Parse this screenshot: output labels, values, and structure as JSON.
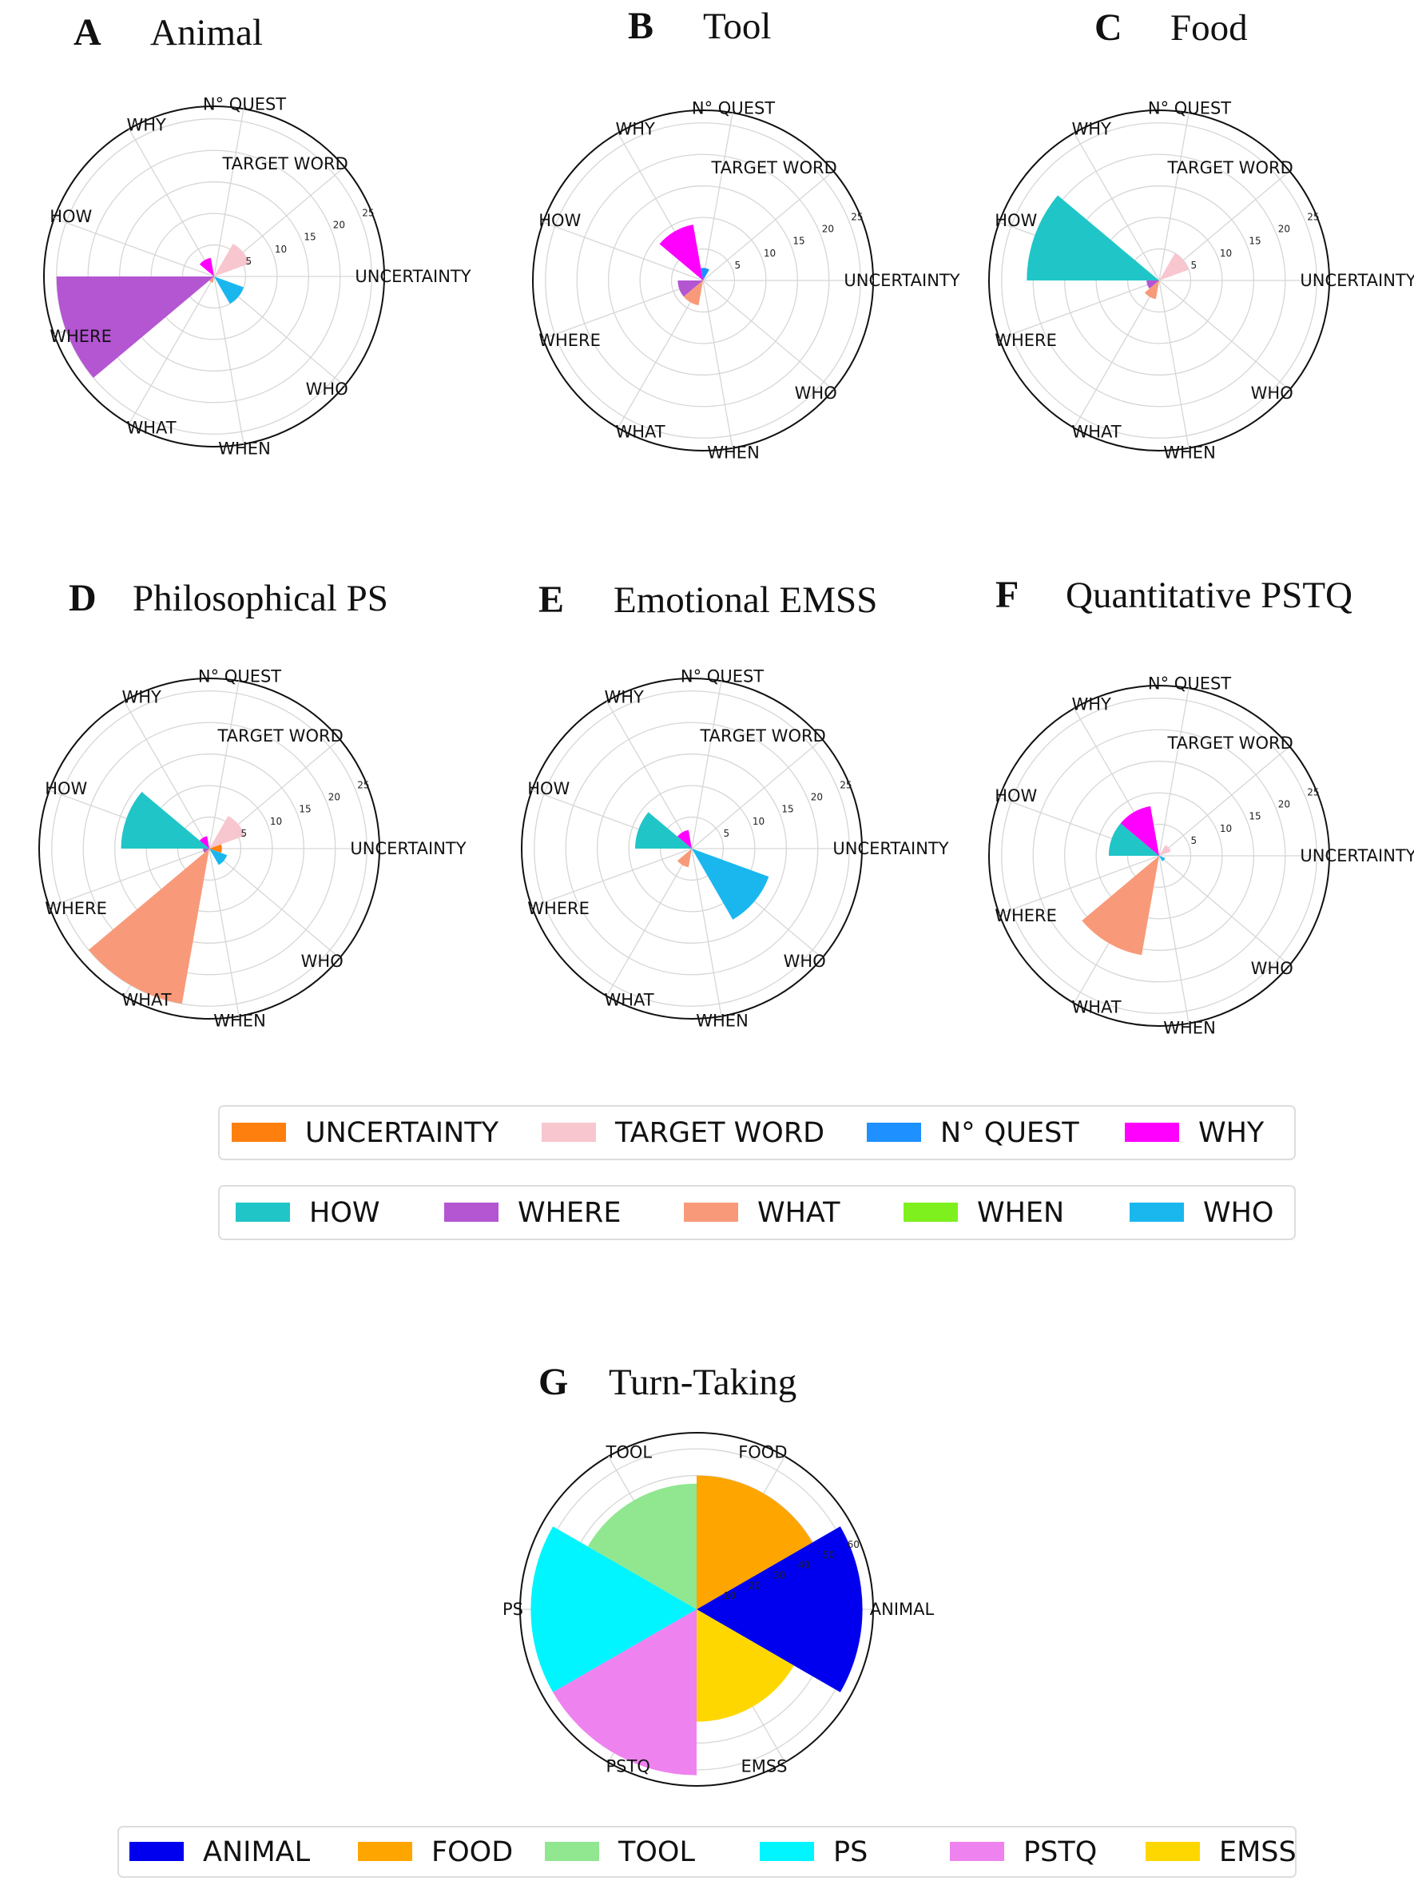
{
  "chart_data": [
    {
      "type": "polar-bar",
      "panel": "A",
      "title": "Animal",
      "categories": [
        "UNCERTAINTY",
        "TARGET WORD",
        "N° QUEST",
        "WHY",
        "HOW",
        "WHERE",
        "WHAT",
        "WHEN",
        "WHO"
      ],
      "values": [
        0,
        6,
        0,
        3,
        0,
        25,
        1,
        0,
        5
      ],
      "rticks": [
        5,
        10,
        15,
        20,
        25
      ],
      "rlim": [
        0,
        27
      ]
    },
    {
      "type": "polar-bar",
      "panel": "B",
      "title": "Tool",
      "categories": [
        "UNCERTAINTY",
        "TARGET WORD",
        "N° QUEST",
        "WHY",
        "HOW",
        "WHERE",
        "WHAT",
        "WHEN",
        "WHO"
      ],
      "values": [
        0,
        0,
        2,
        9,
        0,
        4,
        4,
        0,
        0
      ],
      "rticks": [
        5,
        10,
        15,
        20,
        25
      ],
      "rlim": [
        0,
        27
      ]
    },
    {
      "type": "polar-bar",
      "panel": "C",
      "title": "Food",
      "categories": [
        "UNCERTAINTY",
        "TARGET WORD",
        "N° QUEST",
        "WHY",
        "HOW",
        "WHERE",
        "WHAT",
        "WHEN",
        "WHO"
      ],
      "values": [
        0,
        5,
        0,
        0,
        21,
        2,
        3,
        0,
        0
      ],
      "rticks": [
        5,
        10,
        15,
        20,
        25
      ],
      "rlim": [
        0,
        27
      ]
    },
    {
      "type": "polar-bar",
      "panel": "D",
      "title": "Philosophical PS",
      "categories": [
        "UNCERTAINTY",
        "TARGET WORD",
        "N° QUEST",
        "WHY",
        "HOW",
        "WHERE",
        "WHAT",
        "WHEN",
        "WHO"
      ],
      "values": [
        2,
        6,
        0,
        2,
        14,
        1,
        25,
        0,
        3
      ],
      "rticks": [
        5,
        10,
        15,
        20,
        25
      ],
      "rlim": [
        0,
        27
      ]
    },
    {
      "type": "polar-bar",
      "panel": "E",
      "title": "Emotional EMSS",
      "categories": [
        "UNCERTAINTY",
        "TARGET WORD",
        "N° QUEST",
        "WHY",
        "HOW",
        "WHERE",
        "WHAT",
        "WHEN",
        "WHO"
      ],
      "values": [
        0,
        0,
        0,
        3,
        9,
        0,
        3,
        0,
        13
      ],
      "rticks": [
        5,
        10,
        15,
        20,
        25
      ],
      "rlim": [
        0,
        27
      ]
    },
    {
      "type": "polar-bar",
      "panel": "F",
      "title": "Quantitative PSTQ",
      "categories": [
        "UNCERTAINTY",
        "TARGET WORD",
        "N° QUEST",
        "WHY",
        "HOW",
        "WHERE",
        "WHAT",
        "WHEN",
        "WHO"
      ],
      "values": [
        0,
        2,
        0,
        8,
        8,
        0,
        16,
        0,
        1
      ],
      "rticks": [
        5,
        10,
        15,
        20,
        25
      ],
      "rlim": [
        0,
        27
      ]
    },
    {
      "type": "polar-bar",
      "panel": "G",
      "title": "Turn-Taking",
      "categories": [
        "ANIMAL",
        "FOOD",
        "TOOL",
        "PS",
        "PSTQ",
        "EMSS"
      ],
      "values": [
        62,
        50,
        47,
        62,
        62,
        42
      ],
      "rticks": [
        10,
        20,
        30,
        40,
        50,
        60
      ],
      "rlim": [
        0,
        66
      ]
    }
  ],
  "colors": {
    "UNCERTAINTY": "#ff7f0e",
    "TARGET WORD": "#f7c6cf",
    "N° QUEST": "#1e90ff",
    "WHY": "#ff00ff",
    "HOW": "#20c5c8",
    "WHERE": "#b455d2",
    "WHAT": "#f89a79",
    "WHEN": "#7ef01e",
    "WHO": "#1ab7ef",
    "ANIMAL": "#0000ee",
    "FOOD": "#ffa500",
    "TOOL": "#90e790",
    "PS": "#00f5ff",
    "PSTQ": "#ee82ee",
    "EMSS": "#ffd700"
  },
  "legends": {
    "row1": [
      "UNCERTAINTY",
      "TARGET WORD",
      "N° QUEST",
      "WHY"
    ],
    "row2": [
      "HOW",
      "WHERE",
      "WHAT",
      "WHEN",
      "WHO"
    ],
    "row3": [
      "ANIMAL",
      "FOOD",
      "TOOL",
      "PS",
      "PSTQ",
      "EMSS"
    ]
  }
}
